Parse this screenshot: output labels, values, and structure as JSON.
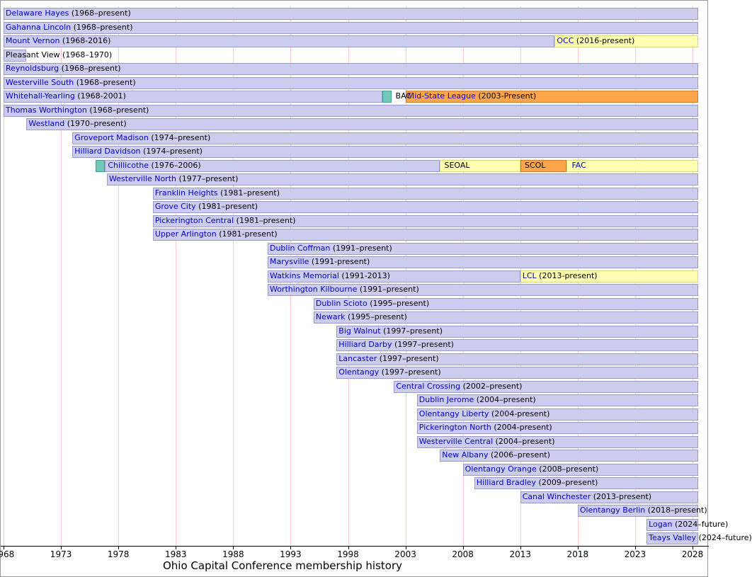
{
  "title": "Ohio Capital Conference membership history",
  "chart_data": {
    "type": "bar",
    "subtype": "timeline-gantt",
    "title": "Ohio Capital Conference membership history",
    "xlabel": "",
    "ylabel": "",
    "grid": "vertical-pink-gridlines-every-5-years",
    "legend": "none",
    "x_axis": {
      "start_year": 1968,
      "end_year": 2028,
      "tick_interval": 5,
      "tick_years": [
        1968,
        1973,
        1978,
        1983,
        1988,
        1993,
        1998,
        2003,
        2008,
        2013,
        2018,
        2023,
        2028
      ],
      "tick_labels": [
        "1968",
        "1973",
        "1978",
        "1983",
        "1988",
        "1993",
        "1998",
        "2003",
        "2008",
        "2013",
        "2018",
        "2023",
        "2028"
      ]
    },
    "colors": {
      "member_bar": "#ccccee",
      "member_border": "#9b9bc8",
      "yellow_bar": "#ffffb3",
      "yellow_border": "#d8d87e",
      "orange_bar": "#ffa64d",
      "orange_border": "#cc7a26",
      "teal_bar": "#72c8ba",
      "teal_border": "#3f9e8f",
      "gridline": "#ffc8c8",
      "link_text": "#0000cc",
      "plain_text": "#000000",
      "axis_text": "#000000"
    },
    "rows": [
      {
        "segments": [
          {
            "from": 1968,
            "to": null,
            "c": "member"
          }
        ],
        "labels": [
          {
            "at": 1968,
            "name": "Delaware Hayes",
            "suffix": " (1968–present)"
          }
        ]
      },
      {
        "segments": [
          {
            "from": 1968,
            "to": null,
            "c": "member"
          }
        ],
        "labels": [
          {
            "at": 1968,
            "name": "Gahanna Lincoln",
            "suffix": " (1968–present)"
          }
        ]
      },
      {
        "segments": [
          {
            "from": 1968,
            "to": 2016,
            "c": "member"
          },
          {
            "from": 2016,
            "to": null,
            "c": "yellow"
          }
        ],
        "labels": [
          {
            "at": 1968,
            "name": "Mount Vernon",
            "suffix": " (1968-2016)"
          },
          {
            "at": 2016,
            "name": "OCC",
            "suffix": " (2016-present)",
            "conference": true
          }
        ]
      },
      {
        "segments": [
          {
            "from": 1968,
            "to": 1970,
            "c": "member"
          }
        ],
        "labels": [
          {
            "at": 1968,
            "name": "Pleasant View",
            "suffix": " (1968–1970)",
            "black": true
          }
        ]
      },
      {
        "segments": [
          {
            "from": 1968,
            "to": null,
            "c": "member"
          }
        ],
        "labels": [
          {
            "at": 1968,
            "name": "Reynoldsburg",
            "suffix": " (1968–present)"
          }
        ]
      },
      {
        "segments": [
          {
            "from": 1968,
            "to": null,
            "c": "member"
          }
        ],
        "labels": [
          {
            "at": 1968,
            "name": "Westerville South",
            "suffix": " (1968–present)"
          }
        ]
      },
      {
        "segments": [
          {
            "from": 1968,
            "to": 2001,
            "c": "member"
          },
          {
            "from": 2001,
            "to": 2001.8,
            "c": "teal"
          },
          {
            "from": 2003,
            "to": null,
            "c": "orange"
          }
        ],
        "labels": [
          {
            "at": 1968,
            "name": "Whitehall-Yearling",
            "suffix": " (1968-2001)"
          },
          {
            "at": 2001.95,
            "name": "BAC",
            "suffix": "",
            "black": true,
            "conference": true
          },
          {
            "at": 2003,
            "name": "Mid-State League",
            "suffix": " (2003-Present)",
            "conference": true
          }
        ]
      },
      {
        "segments": [
          {
            "from": 1968,
            "to": null,
            "c": "member"
          }
        ],
        "labels": [
          {
            "at": 1968,
            "name": "Thomas Worthington",
            "suffix": " (1968–present)"
          }
        ]
      },
      {
        "segments": [
          {
            "from": 1970,
            "to": null,
            "c": "member"
          }
        ],
        "labels": [
          {
            "at": 1970,
            "name": "Westland",
            "suffix": " (1970–present)"
          }
        ]
      },
      {
        "segments": [
          {
            "from": 1974,
            "to": null,
            "c": "member"
          }
        ],
        "labels": [
          {
            "at": 1974,
            "name": "Groveport Madison",
            "suffix": " (1974–present)"
          }
        ]
      },
      {
        "segments": [
          {
            "from": 1974,
            "to": null,
            "c": "member"
          }
        ],
        "labels": [
          {
            "at": 1974,
            "name": "Hilliard Davidson",
            "suffix": " (1974–present)"
          }
        ]
      },
      {
        "segments": [
          {
            "from": 1976,
            "to": 1976.8,
            "c": "teal"
          },
          {
            "from": 1976.8,
            "to": 2006,
            "c": "member"
          },
          {
            "from": 2006,
            "to": 2013,
            "c": "yellow"
          },
          {
            "from": 2013,
            "to": 2017,
            "c": "orange"
          },
          {
            "from": 2017,
            "to": null,
            "c": "yellow"
          }
        ],
        "labels": [
          {
            "at": 1976.9,
            "name": "Chillicothe",
            "suffix": " (1976–2006)"
          },
          {
            "at": 2006.2,
            "name": "SEOAL",
            "suffix": "",
            "black": true,
            "conference": true
          },
          {
            "at": 2013.2,
            "name": "SCOL",
            "suffix": "",
            "black": true,
            "conference": true
          },
          {
            "at": 2017.3,
            "name": "FAC",
            "suffix": "",
            "conference": true
          }
        ]
      },
      {
        "segments": [
          {
            "from": 1977,
            "to": null,
            "c": "member"
          }
        ],
        "labels": [
          {
            "at": 1977,
            "name": "Westerville North",
            "suffix": " (1977–present)"
          }
        ]
      },
      {
        "segments": [
          {
            "from": 1981,
            "to": null,
            "c": "member"
          }
        ],
        "labels": [
          {
            "at": 1981,
            "name": "Franklin Heights",
            "suffix": " (1981–present)"
          }
        ]
      },
      {
        "segments": [
          {
            "from": 1981,
            "to": null,
            "c": "member"
          }
        ],
        "labels": [
          {
            "at": 1981,
            "name": "Grove City",
            "suffix": " (1981–present)"
          }
        ]
      },
      {
        "segments": [
          {
            "from": 1981,
            "to": null,
            "c": "member"
          }
        ],
        "labels": [
          {
            "at": 1981,
            "name": "Pickerington Central",
            "suffix": " (1981–present)"
          }
        ]
      },
      {
        "segments": [
          {
            "from": 1981,
            "to": null,
            "c": "member"
          }
        ],
        "labels": [
          {
            "at": 1981,
            "name": "Upper Arlington",
            "suffix": " (1981-present)"
          }
        ]
      },
      {
        "segments": [
          {
            "from": 1991,
            "to": null,
            "c": "member"
          }
        ],
        "labels": [
          {
            "at": 1991,
            "name": "Dublin Coffman",
            "suffix": " (1991–present)"
          }
        ]
      },
      {
        "segments": [
          {
            "from": 1991,
            "to": null,
            "c": "member"
          }
        ],
        "labels": [
          {
            "at": 1991,
            "name": "Marysville",
            "suffix": " (1991-present)"
          }
        ]
      },
      {
        "segments": [
          {
            "from": 1991,
            "to": 2013,
            "c": "member"
          },
          {
            "from": 2013,
            "to": null,
            "c": "yellow"
          }
        ],
        "labels": [
          {
            "at": 1991,
            "name": "Watkins Memorial",
            "suffix": " (1991-2013)"
          },
          {
            "at": 2013,
            "name": "LCL",
            "suffix": " (2013-present)",
            "conference": true
          }
        ]
      },
      {
        "segments": [
          {
            "from": 1991,
            "to": null,
            "c": "member"
          }
        ],
        "labels": [
          {
            "at": 1991,
            "name": "Worthington Kilbourne",
            "suffix": " (1991–present)"
          }
        ]
      },
      {
        "segments": [
          {
            "from": 1995,
            "to": null,
            "c": "member"
          }
        ],
        "labels": [
          {
            "at": 1995,
            "name": "Dublin Scioto",
            "suffix": " (1995–present)"
          }
        ]
      },
      {
        "segments": [
          {
            "from": 1995,
            "to": null,
            "c": "member"
          }
        ],
        "labels": [
          {
            "at": 1995,
            "name": "Newark",
            "suffix": " (1995–present)"
          }
        ]
      },
      {
        "segments": [
          {
            "from": 1997,
            "to": null,
            "c": "member"
          }
        ],
        "labels": [
          {
            "at": 1997,
            "name": "Big Walnut",
            "suffix": " (1997–present)"
          }
        ]
      },
      {
        "segments": [
          {
            "from": 1997,
            "to": null,
            "c": "member"
          }
        ],
        "labels": [
          {
            "at": 1997,
            "name": "Hilliard Darby",
            "suffix": " (1997–present)"
          }
        ]
      },
      {
        "segments": [
          {
            "from": 1997,
            "to": null,
            "c": "member"
          }
        ],
        "labels": [
          {
            "at": 1997,
            "name": "Lancaster",
            "suffix": " (1997–present)"
          }
        ]
      },
      {
        "segments": [
          {
            "from": 1997,
            "to": null,
            "c": "member"
          }
        ],
        "labels": [
          {
            "at": 1997,
            "name": "Olentangy",
            "suffix": " (1997–present)"
          }
        ]
      },
      {
        "segments": [
          {
            "from": 2002,
            "to": null,
            "c": "member"
          }
        ],
        "labels": [
          {
            "at": 2002,
            "name": "Central Crossing",
            "suffix": " (2002–present)"
          }
        ]
      },
      {
        "segments": [
          {
            "from": 2004,
            "to": null,
            "c": "member"
          }
        ],
        "labels": [
          {
            "at": 2004,
            "name": "Dublin Jerome",
            "suffix": " (2004–present)"
          }
        ]
      },
      {
        "segments": [
          {
            "from": 2004,
            "to": null,
            "c": "member"
          }
        ],
        "labels": [
          {
            "at": 2004,
            "name": "Olentangy Liberty",
            "suffix": " (2004-present)"
          }
        ]
      },
      {
        "segments": [
          {
            "from": 2004,
            "to": null,
            "c": "member"
          }
        ],
        "labels": [
          {
            "at": 2004,
            "name": "Pickerington North",
            "suffix": " (2004-present)"
          }
        ]
      },
      {
        "segments": [
          {
            "from": 2004,
            "to": null,
            "c": "member"
          }
        ],
        "labels": [
          {
            "at": 2004,
            "name": "Westerville Central",
            "suffix": " (2004–present)"
          }
        ]
      },
      {
        "segments": [
          {
            "from": 2006,
            "to": null,
            "c": "member"
          }
        ],
        "labels": [
          {
            "at": 2006,
            "name": "New Albany",
            "suffix": " (2006–present)"
          }
        ]
      },
      {
        "segments": [
          {
            "from": 2008,
            "to": null,
            "c": "member"
          }
        ],
        "labels": [
          {
            "at": 2008,
            "name": "Olentangy Orange",
            "suffix": " (2008–present)"
          }
        ]
      },
      {
        "segments": [
          {
            "from": 2009,
            "to": null,
            "c": "member"
          }
        ],
        "labels": [
          {
            "at": 2009,
            "name": "Hilliard Bradley",
            "suffix": " (2009–present)"
          }
        ]
      },
      {
        "segments": [
          {
            "from": 2013,
            "to": null,
            "c": "member"
          }
        ],
        "labels": [
          {
            "at": 2013,
            "name": "Canal Winchester",
            "suffix": " (2013-present)"
          }
        ]
      },
      {
        "segments": [
          {
            "from": 2018,
            "to": null,
            "c": "member"
          }
        ],
        "labels": [
          {
            "at": 2018,
            "name": "Olentangy Berlin",
            "suffix": " (2018–present)"
          }
        ]
      },
      {
        "segments": [
          {
            "from": 2024,
            "to": null,
            "c": "member"
          }
        ],
        "labels": [
          {
            "at": 2024,
            "name": "Logan",
            "suffix": " (2024–future)"
          }
        ]
      },
      {
        "segments": [
          {
            "from": 2024,
            "to": null,
            "c": "member"
          }
        ],
        "labels": [
          {
            "at": 2024,
            "name": "Teays Valley",
            "suffix": " (2024–future)"
          }
        ]
      }
    ]
  }
}
